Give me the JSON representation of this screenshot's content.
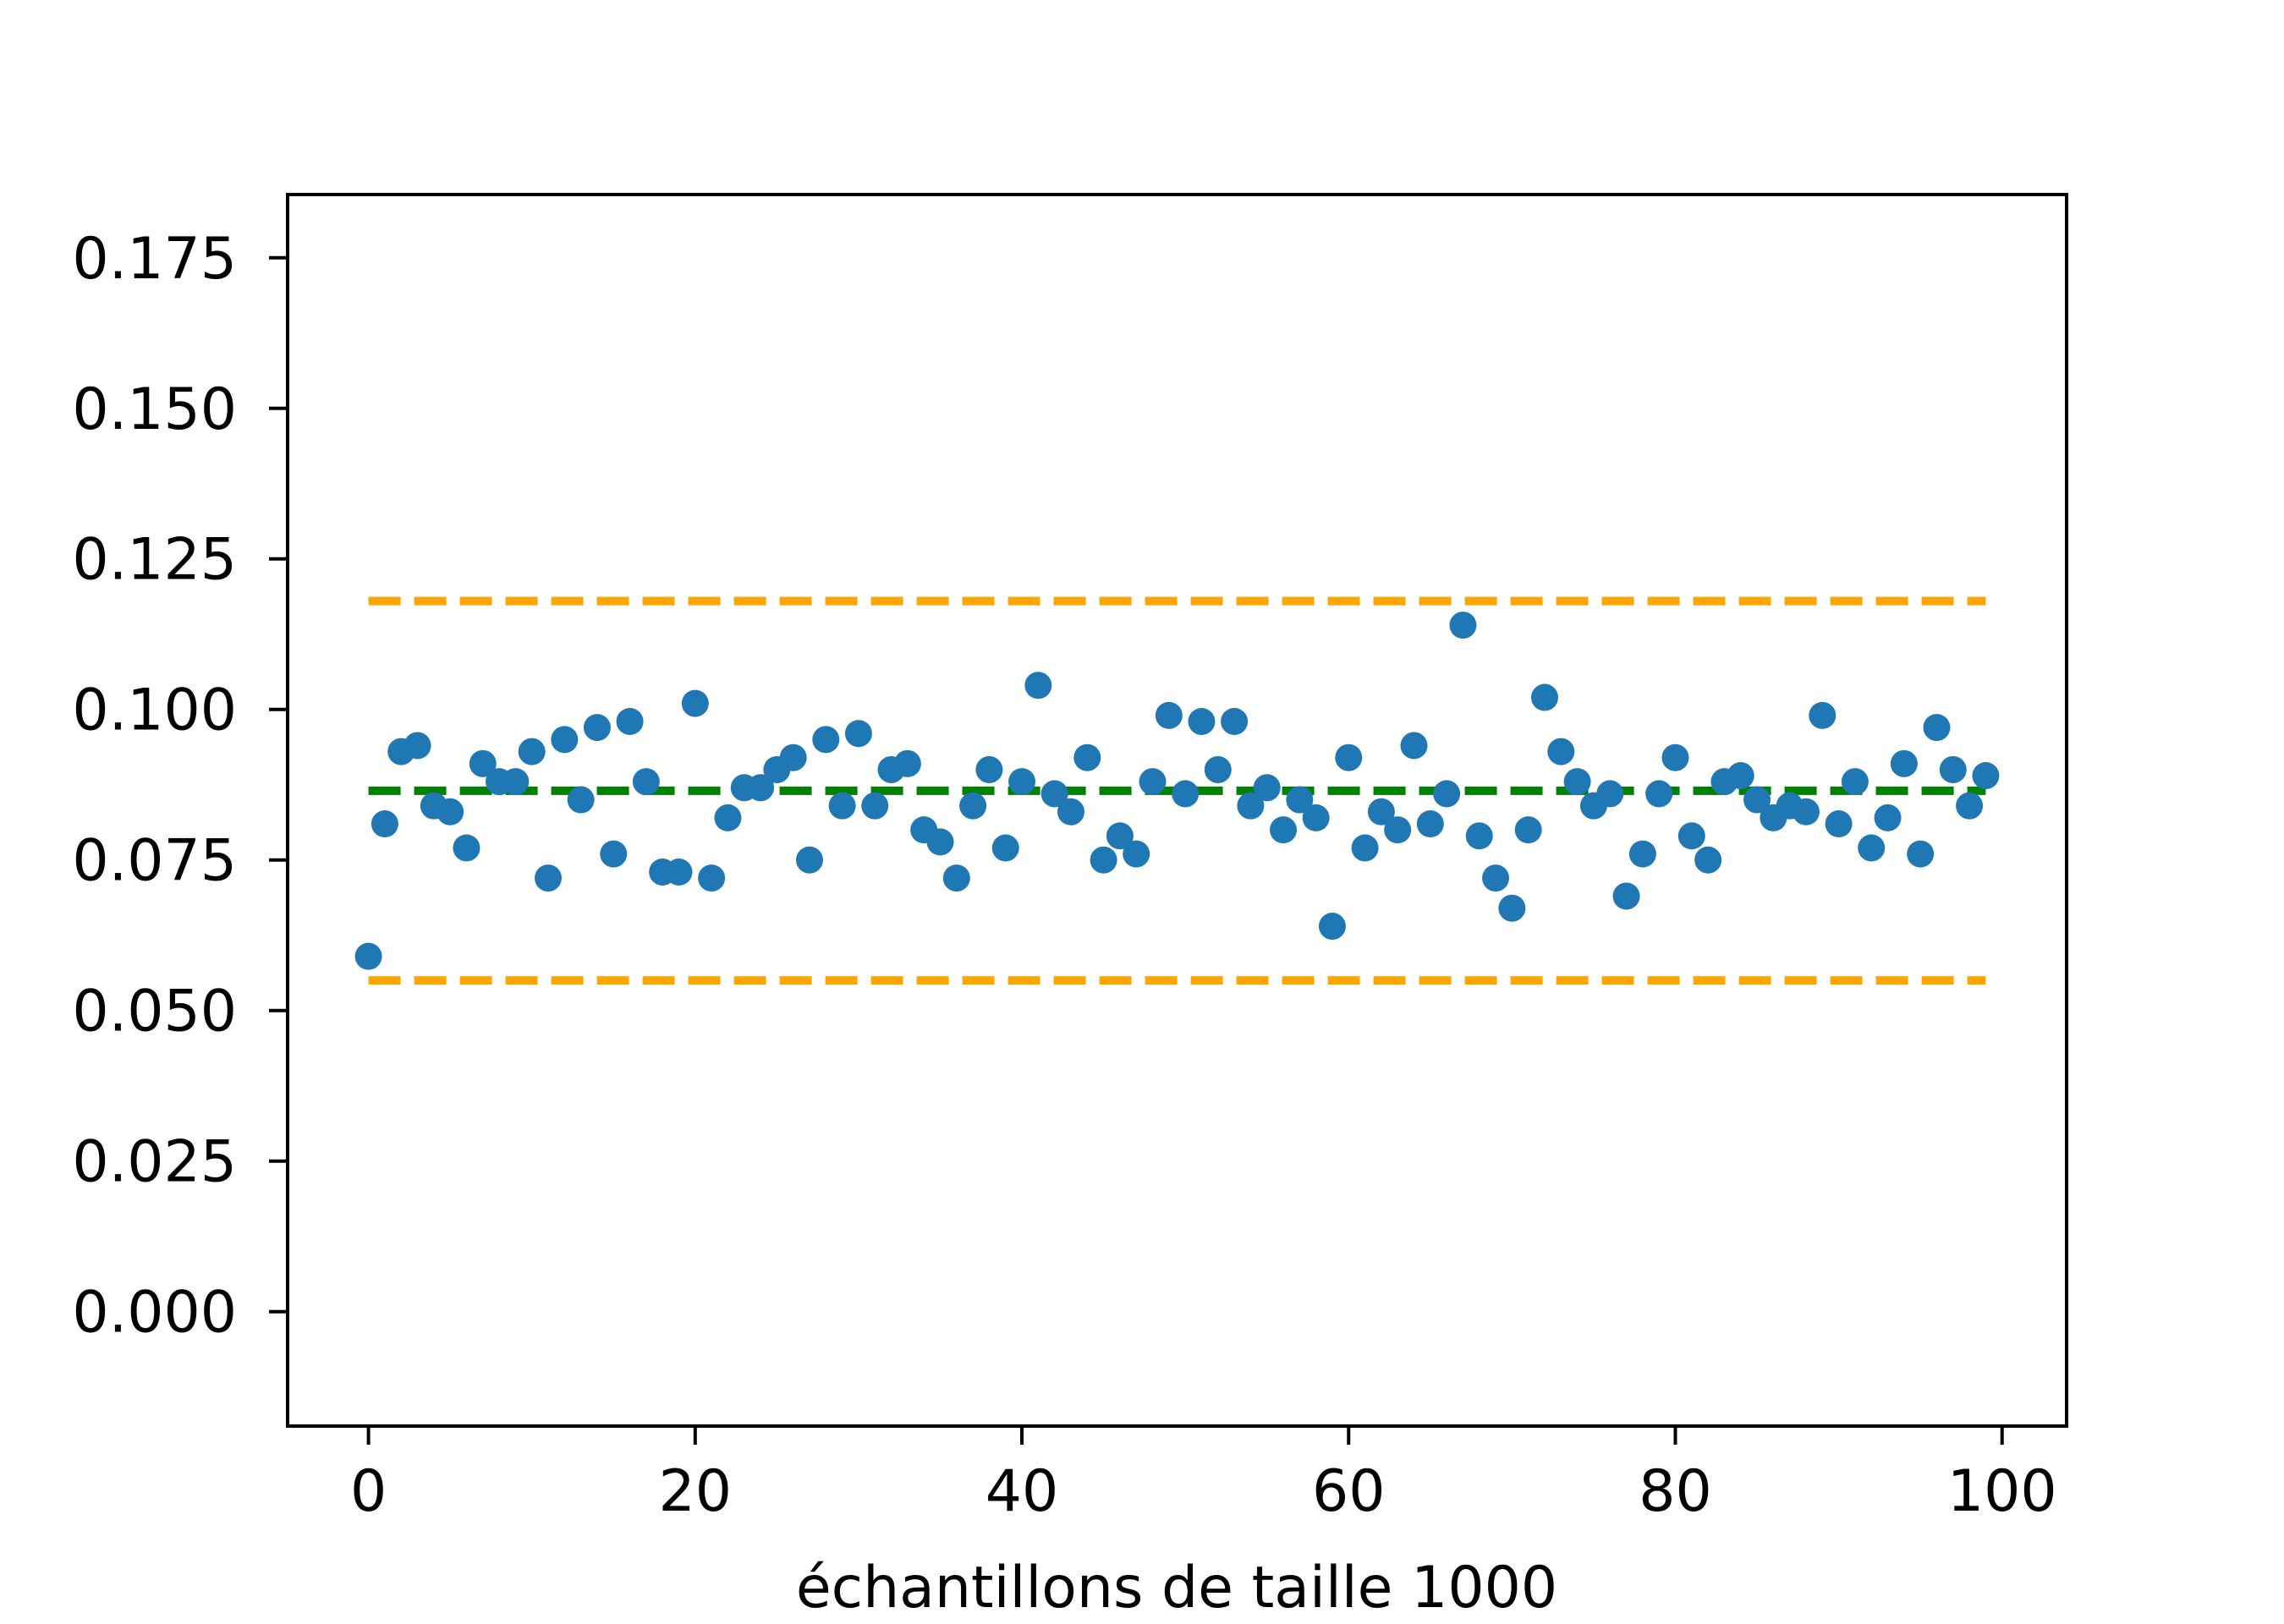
{
  "chart_data": {
    "type": "scatter",
    "title": "",
    "xlabel": "échantillons de taille 1000",
    "ylabel": "",
    "xlim": [
      -4.95,
      103.95
    ],
    "ylim": [
      -0.019,
      0.1855
    ],
    "x_ticks": [
      0,
      20,
      40,
      60,
      80,
      100
    ],
    "x_tick_labels": [
      "0",
      "20",
      "40",
      "60",
      "80",
      "100"
    ],
    "y_ticks": [
      0.0,
      0.025,
      0.05,
      0.075,
      0.1,
      0.125,
      0.15,
      0.175
    ],
    "y_tick_labels": [
      "0.000",
      "0.025",
      "0.050",
      "0.075",
      "0.100",
      "0.125",
      "0.150",
      "0.175"
    ],
    "grid": false,
    "series": [
      {
        "kind": "scatter",
        "color": "#1f77b4",
        "x": [
          0,
          1,
          2,
          3,
          4,
          5,
          6,
          7,
          8,
          9,
          10,
          11,
          12,
          13,
          14,
          15,
          16,
          17,
          18,
          19,
          20,
          21,
          22,
          23,
          24,
          25,
          26,
          27,
          28,
          29,
          30,
          31,
          32,
          33,
          34,
          35,
          36,
          37,
          38,
          39,
          40,
          41,
          42,
          43,
          44,
          45,
          46,
          47,
          48,
          49,
          50,
          51,
          52,
          53,
          54,
          55,
          56,
          57,
          58,
          59,
          60,
          61,
          62,
          63,
          64,
          65,
          66,
          67,
          68,
          69,
          70,
          71,
          72,
          73,
          74,
          75,
          76,
          77,
          78,
          79,
          80,
          81,
          82,
          83,
          84,
          85,
          86,
          87,
          88,
          89,
          90,
          91,
          92,
          93,
          94,
          95,
          96,
          97,
          98,
          99
        ],
        "y": [
          0.059,
          0.081,
          0.093,
          0.094,
          0.084,
          0.083,
          0.077,
          0.091,
          0.088,
          0.088,
          0.093,
          0.072,
          0.095,
          0.085,
          0.097,
          0.076,
          0.098,
          0.088,
          0.073,
          0.073,
          0.101,
          0.072,
          0.082,
          0.087,
          0.087,
          0.09,
          0.092,
          0.075,
          0.095,
          0.084,
          0.096,
          0.084,
          0.09,
          0.091,
          0.08,
          0.078,
          0.072,
          0.084,
          0.09,
          0.077,
          0.088,
          0.104,
          0.086,
          0.083,
          0.092,
          0.075,
          0.079,
          0.076,
          0.088,
          0.099,
          0.086,
          0.098,
          0.09,
          0.098,
          0.084,
          0.087,
          0.08,
          0.085,
          0.082,
          0.064,
          0.092,
          0.077,
          0.083,
          0.08,
          0.094,
          0.081,
          0.086,
          0.114,
          0.079,
          0.072,
          0.067,
          0.08,
          0.102,
          0.093,
          0.088,
          0.084,
          0.086,
          0.069,
          0.076,
          0.086,
          0.092,
          0.079,
          0.075,
          0.088,
          0.089,
          0.085,
          0.082,
          0.084,
          0.083,
          0.099,
          0.081,
          0.088,
          0.077,
          0.082,
          0.091,
          0.076,
          0.097,
          0.09,
          0.084,
          0.089
        ]
      }
    ],
    "reference_lines": [
      {
        "kind": "dashed-line",
        "color": "#ffa500",
        "x": [
          0,
          99
        ],
        "y": 0.118
      },
      {
        "kind": "dashed-line",
        "color": "#ffa500",
        "x": [
          0,
          99
        ],
        "y": 0.055
      },
      {
        "kind": "dashed-line",
        "color": "#008000",
        "x": [
          0,
          99
        ],
        "y": 0.0865
      }
    ]
  }
}
